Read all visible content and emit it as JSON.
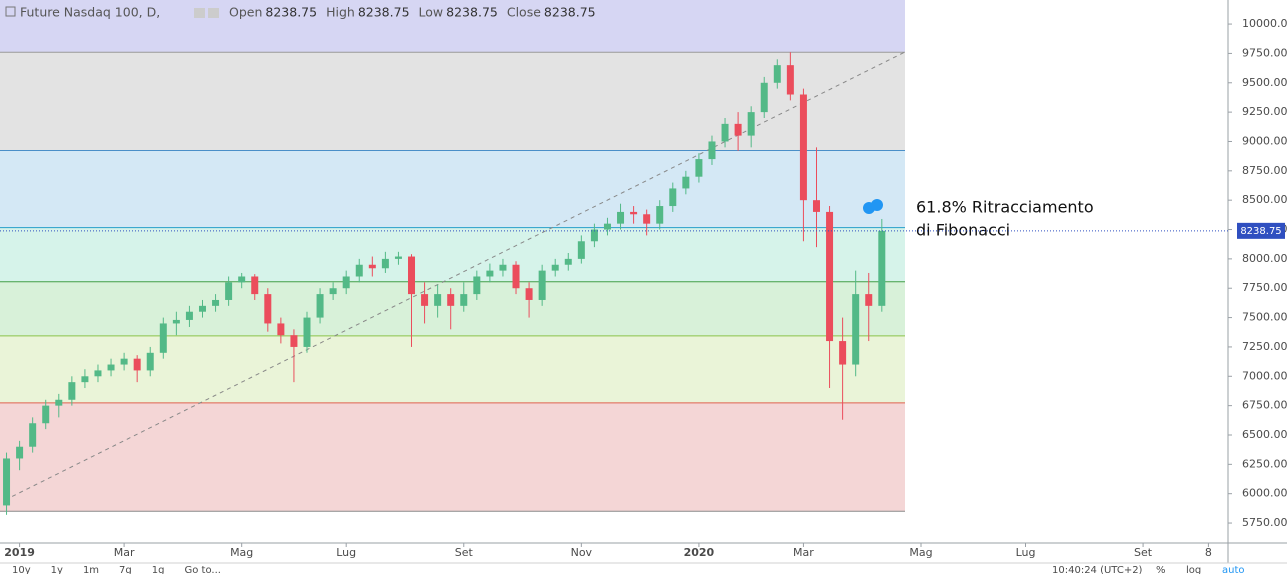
{
  "header": {
    "symbol": "Future Nasdaq 100, D,",
    "ohlc": [
      {
        "name": "Open",
        "value": 8238.75
      },
      {
        "name": "High",
        "value": 8238.75
      },
      {
        "name": "Low",
        "value": 8238.75
      },
      {
        "name": "Close",
        "value": 8238.75
      }
    ]
  },
  "toolbar": {
    "ranges": [
      "10y",
      "1y",
      "1m",
      "7g",
      "1g",
      "Go to..."
    ],
    "clock": "10:40:24 (UTC+2)",
    "options": [
      "%",
      "log",
      "auto"
    ]
  },
  "chart_data": {
    "type": "candlestick",
    "categories": [
      null,
      "2019",
      null,
      null,
      null,
      null,
      null,
      null,
      null,
      "Mar",
      null,
      null,
      null,
      null,
      null,
      null,
      null,
      null,
      "Mag",
      null,
      null,
      null,
      null,
      null,
      null,
      null,
      "Lug",
      null,
      null,
      null,
      null,
      null,
      null,
      null,
      null,
      "Set",
      null,
      null,
      null,
      null,
      null,
      null,
      null,
      null,
      "Nov",
      null,
      null,
      null,
      null,
      null,
      null,
      null,
      null,
      "2020",
      null,
      null,
      null,
      null,
      null,
      null,
      null,
      "Mar",
      null,
      null,
      null,
      null,
      null,
      null,
      null,
      null,
      "Mag",
      null,
      null,
      null,
      null,
      null,
      null,
      null,
      "Lug",
      null,
      null,
      null,
      null,
      null,
      null,
      null,
      null,
      "Set",
      null,
      null,
      null,
      null,
      "8",
      null
    ],
    "open": [
      5900,
      6300,
      6400,
      6600,
      6750,
      6800,
      6950,
      7000,
      7050,
      7100,
      7150,
      7050,
      7200,
      7450,
      7480,
      7550,
      7600,
      7650,
      7800,
      7850,
      7700,
      7450,
      7350,
      7250,
      7500,
      7700,
      7750,
      7850,
      7950,
      7920,
      8000,
      8020,
      7700,
      7600,
      7700,
      7600,
      7700,
      7850,
      7900,
      7950,
      7750,
      7650,
      7900,
      7950,
      8000,
      8150,
      8250,
      8300,
      8400,
      8380,
      8300,
      8450,
      8600,
      8700,
      8850,
      9000,
      9150,
      9050,
      9250,
      9500,
      9650,
      9400,
      8500,
      8400,
      7300,
      7100,
      7700,
      7600,
      null,
      null,
      null,
      null,
      null,
      null,
      null,
      null,
      null,
      null,
      null,
      null,
      null,
      null,
      null,
      null,
      null,
      null,
      null,
      null,
      null,
      null,
      null,
      null,
      null,
      null
    ],
    "high": [
      6350,
      6450,
      6650,
      6800,
      6850,
      7000,
      7060,
      7100,
      7150,
      7200,
      7180,
      7250,
      7500,
      7550,
      7600,
      7650,
      7700,
      7850,
      7880,
      7870,
      7750,
      7500,
      7400,
      7550,
      7750,
      7800,
      7900,
      8000,
      8020,
      8060,
      8060,
      8040,
      7800,
      7780,
      7750,
      7800,
      7900,
      7960,
      8000,
      7980,
      7800,
      7950,
      8000,
      8050,
      8200,
      8300,
      8350,
      8470,
      8450,
      8420,
      8500,
      8650,
      8750,
      8900,
      9050,
      9200,
      9250,
      9300,
      9550,
      9700,
      9760,
      9450,
      8950,
      8450,
      7500,
      7900,
      7880,
      8340,
      null,
      null,
      null,
      null,
      null,
      null,
      null,
      null,
      null,
      null,
      null,
      null,
      null,
      null,
      null,
      null,
      null,
      null,
      null,
      null,
      null,
      null,
      null,
      null,
      null,
      null
    ],
    "low": [
      5820,
      6200,
      6350,
      6550,
      6650,
      6750,
      6900,
      6950,
      7000,
      7050,
      6950,
      7000,
      7150,
      7350,
      7420,
      7500,
      7550,
      7600,
      7750,
      7650,
      7380,
      7280,
      6950,
      7200,
      7450,
      7650,
      7700,
      7800,
      7850,
      7880,
      7950,
      7250,
      7450,
      7500,
      7400,
      7550,
      7650,
      7800,
      7850,
      7700,
      7500,
      7600,
      7850,
      7900,
      7960,
      8100,
      8200,
      8250,
      8300,
      8200,
      8250,
      8400,
      8550,
      8650,
      8800,
      8950,
      8920,
      8950,
      9200,
      9450,
      9350,
      8150,
      8100,
      6900,
      6630,
      7000,
      7300,
      7550,
      null,
      null,
      null,
      null,
      null,
      null,
      null,
      null,
      null,
      null,
      null,
      null,
      null,
      null,
      null,
      null,
      null,
      null,
      null,
      null,
      null,
      null,
      null,
      null,
      null,
      null
    ],
    "close": [
      6300,
      6400,
      6600,
      6750,
      6800,
      6950,
      7000,
      7050,
      7100,
      7150,
      7050,
      7200,
      7450,
      7480,
      7550,
      7600,
      7650,
      7800,
      7850,
      7700,
      7450,
      7350,
      7250,
      7500,
      7700,
      7750,
      7850,
      7950,
      7920,
      8000,
      8020,
      7700,
      7600,
      7700,
      7600,
      7700,
      7850,
      7900,
      7950,
      7750,
      7650,
      7900,
      7950,
      8000,
      8150,
      8250,
      8300,
      8400,
      8380,
      8300,
      8450,
      8600,
      8700,
      8850,
      9000,
      9150,
      9050,
      9250,
      9500,
      9650,
      9400,
      8500,
      8400,
      7300,
      7100,
      7700,
      7600,
      8238.75,
      null,
      null,
      null,
      null,
      null,
      null,
      null,
      null,
      null,
      null,
      null,
      null,
      null,
      null,
      null,
      null,
      null,
      null,
      null,
      null,
      null,
      null,
      null,
      null,
      null,
      null
    ],
    "up_color": "#53b987",
    "down_color": "#eb4d5c",
    "ylim": [
      5580,
      10205
    ],
    "yticks": [
      {
        "value": 5750,
        "label": "5750.00"
      },
      {
        "value": 6000,
        "label": "6000.00"
      },
      {
        "value": 6250,
        "label": "6250.00"
      },
      {
        "value": 6500,
        "label": "6500.00"
      },
      {
        "value": 6750,
        "label": "6750.00"
      },
      {
        "value": 7000,
        "label": "7000.00"
      },
      {
        "value": 7250,
        "label": "7250.00"
      },
      {
        "value": 7500,
        "label": "7500.00"
      },
      {
        "value": 7750,
        "label": "7750.00"
      },
      {
        "value": 8000,
        "label": "8000.00"
      },
      {
        "value": 8250,
        "label": "8250.00"
      },
      {
        "value": 8500,
        "label": "8500.00"
      },
      {
        "value": 8750,
        "label": "8750.00"
      },
      {
        "value": 9000,
        "label": "9000.00"
      },
      {
        "value": 9250,
        "label": "9250.00"
      },
      {
        "value": 9500,
        "label": "9500.00"
      },
      {
        "value": 9750,
        "label": "9750.00"
      },
      {
        "value": 10000,
        "label": "10000.00"
      }
    ],
    "last_price": {
      "value": 8238.75,
      "label": "8238.75"
    },
    "fib": {
      "levels": [
        5850,
        6773,
        7344,
        7805,
        8266,
        8923,
        9760
      ],
      "line_colors": [
        "#8a8a8a",
        "#e0604f",
        "#8bc34a",
        "#43a047",
        "#26a0c8",
        "#4a8fc8",
        "#9a9a9a"
      ],
      "band_colors": [
        "#f4d6d6",
        "#eaf4d8",
        "#d8f1d9",
        "#d6f3ea",
        "#d4e8f5",
        "#e3e3e3"
      ],
      "top_color": "#d6d6f3"
    },
    "annotation": [
      "61.8% Ritracciamento",
      "di Fibonacci"
    ]
  }
}
